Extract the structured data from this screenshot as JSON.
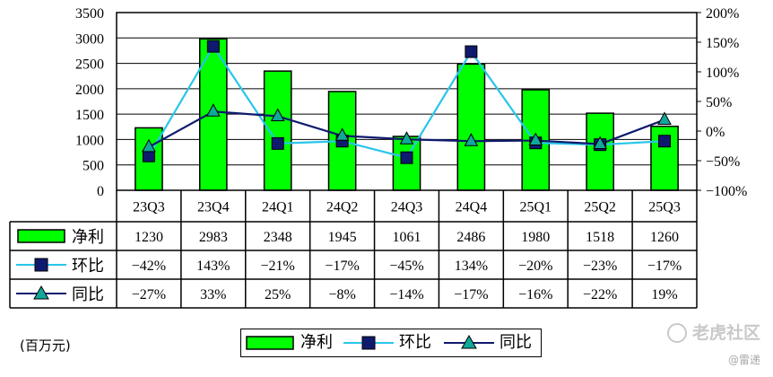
{
  "chart_data": {
    "type": "bar",
    "categories": [
      "23Q3",
      "23Q4",
      "24Q1",
      "24Q2",
      "24Q3",
      "24Q4",
      "25Q1",
      "25Q2",
      "25Q3"
    ],
    "ylim_left": [
      0,
      3500
    ],
    "left_ticks": [
      "0",
      "500",
      "1000",
      "1500",
      "2000",
      "2500",
      "3000",
      "3500"
    ],
    "ylim_right": [
      -100,
      200
    ],
    "right_ticks": [
      "-100%",
      "-50%",
      "0%",
      "50%",
      "100%",
      "150%",
      "200%"
    ],
    "grid": true,
    "series": [
      {
        "name": "净利",
        "type": "bar",
        "axis": "left",
        "color": "#00ff00",
        "values": [
          1230,
          2983,
          2348,
          1945,
          1061,
          2486,
          1980,
          1518,
          1260
        ],
        "labels": [
          "1230",
          "2983",
          "2348",
          "1945",
          "1061",
          "2486",
          "1980",
          "1518",
          "1260"
        ]
      },
      {
        "name": "环比",
        "type": "line",
        "axis": "right",
        "color": "#29c5ea",
        "marker": "square",
        "values": [
          -42,
          143,
          -21,
          -17,
          -45,
          134,
          -20,
          -23,
          -17
        ],
        "labels": [
          "−42%",
          "143%",
          "−21%",
          "−17%",
          "−45%",
          "134%",
          "−20%",
          "−23%",
          "−17%"
        ]
      },
      {
        "name": "同比",
        "type": "line",
        "axis": "right",
        "color": "#0f1a6e",
        "marker": "triangle",
        "values": [
          -27,
          33,
          25,
          -8,
          -14,
          -17,
          -16,
          -22,
          19
        ],
        "labels": [
          "−27%",
          "33%",
          "25%",
          "−8%",
          "−14%",
          "−17%",
          "−16%",
          "−22%",
          "19%"
        ]
      }
    ],
    "legend_position": "bottom",
    "unit_label": "(百万元)"
  },
  "watermark": {
    "brand": "老虎社区",
    "credit": "@雷递"
  }
}
